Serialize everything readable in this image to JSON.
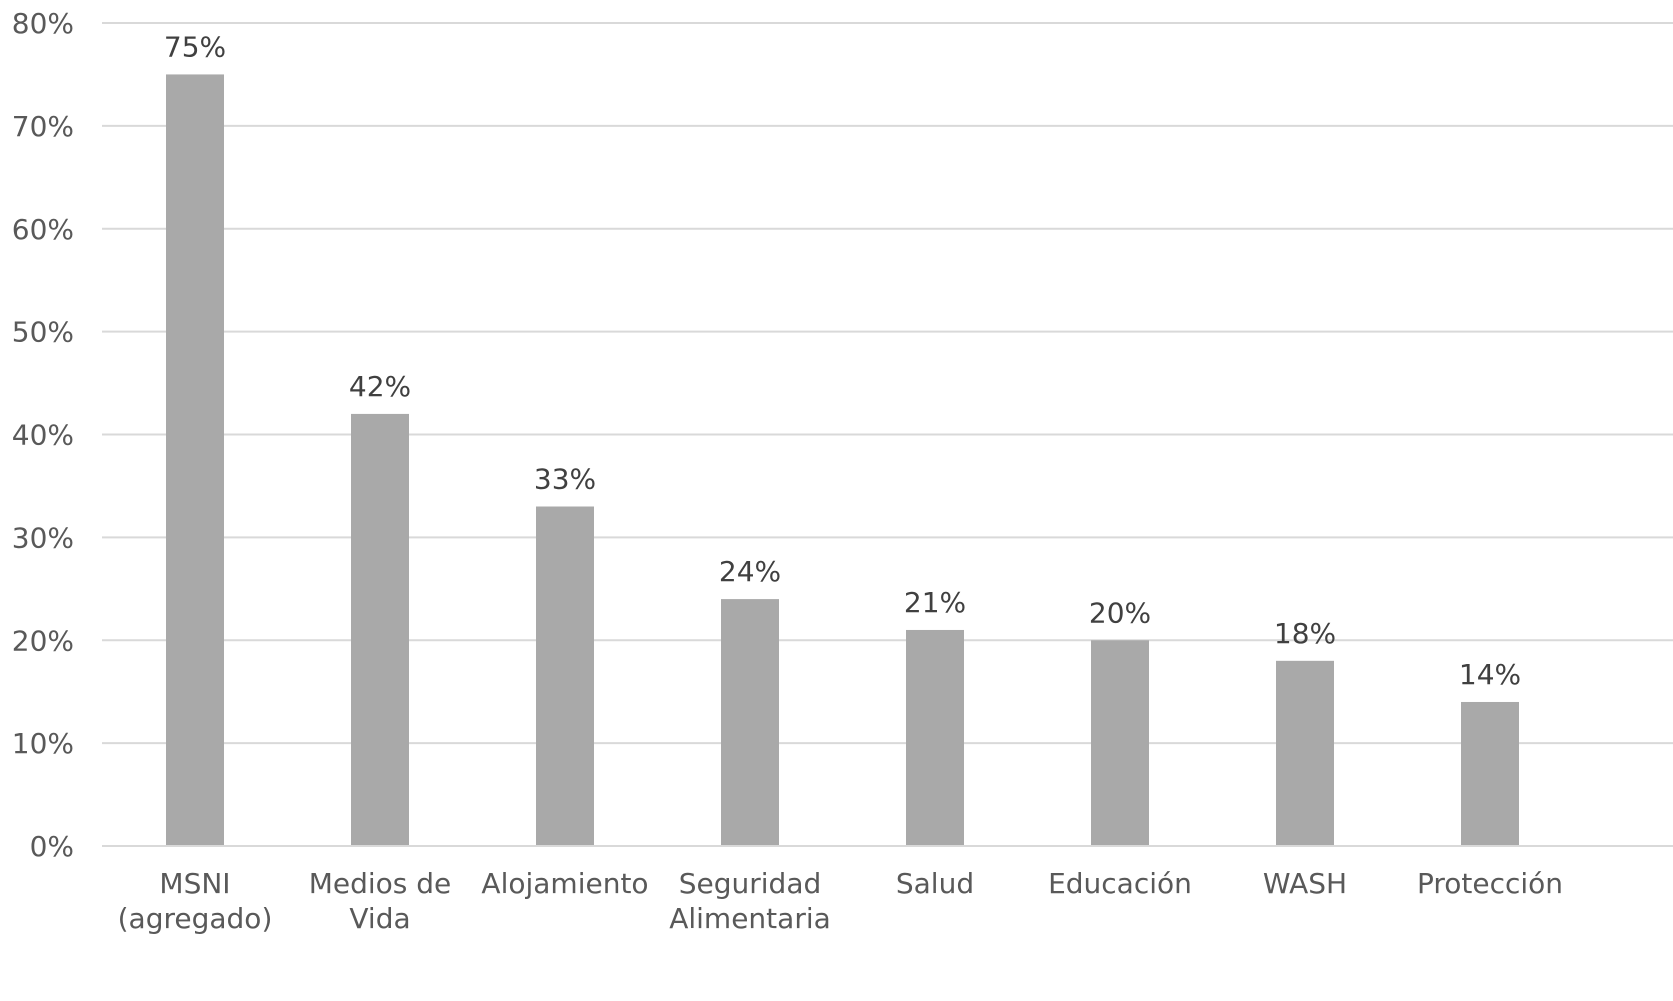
{
  "chart_data": {
    "type": "bar",
    "categories": [
      [
        "MSNI",
        "(agregado)"
      ],
      [
        "Medios de",
        "Vida"
      ],
      [
        "Alojamiento"
      ],
      [
        "Seguridad",
        "Alimentaria"
      ],
      [
        "Salud"
      ],
      [
        "Educación"
      ],
      [
        "WASH"
      ],
      [
        "Protección"
      ]
    ],
    "values": [
      75,
      42,
      33,
      24,
      21,
      20,
      18,
      14
    ],
    "data_labels": [
      "75%",
      "42%",
      "33%",
      "24%",
      "21%",
      "20%",
      "18%",
      "14%"
    ],
    "y_ticks": [
      "0%",
      "10%",
      "20%",
      "30%",
      "40%",
      "50%",
      "60%",
      "70%",
      "80%"
    ],
    "y_tick_values": [
      0,
      10,
      20,
      30,
      40,
      50,
      60,
      70,
      80
    ],
    "ylim": [
      0,
      80
    ],
    "grid": true,
    "legend": "none",
    "bar_color": "#a9a9a9",
    "title": "",
    "xlabel": "",
    "ylabel": ""
  }
}
